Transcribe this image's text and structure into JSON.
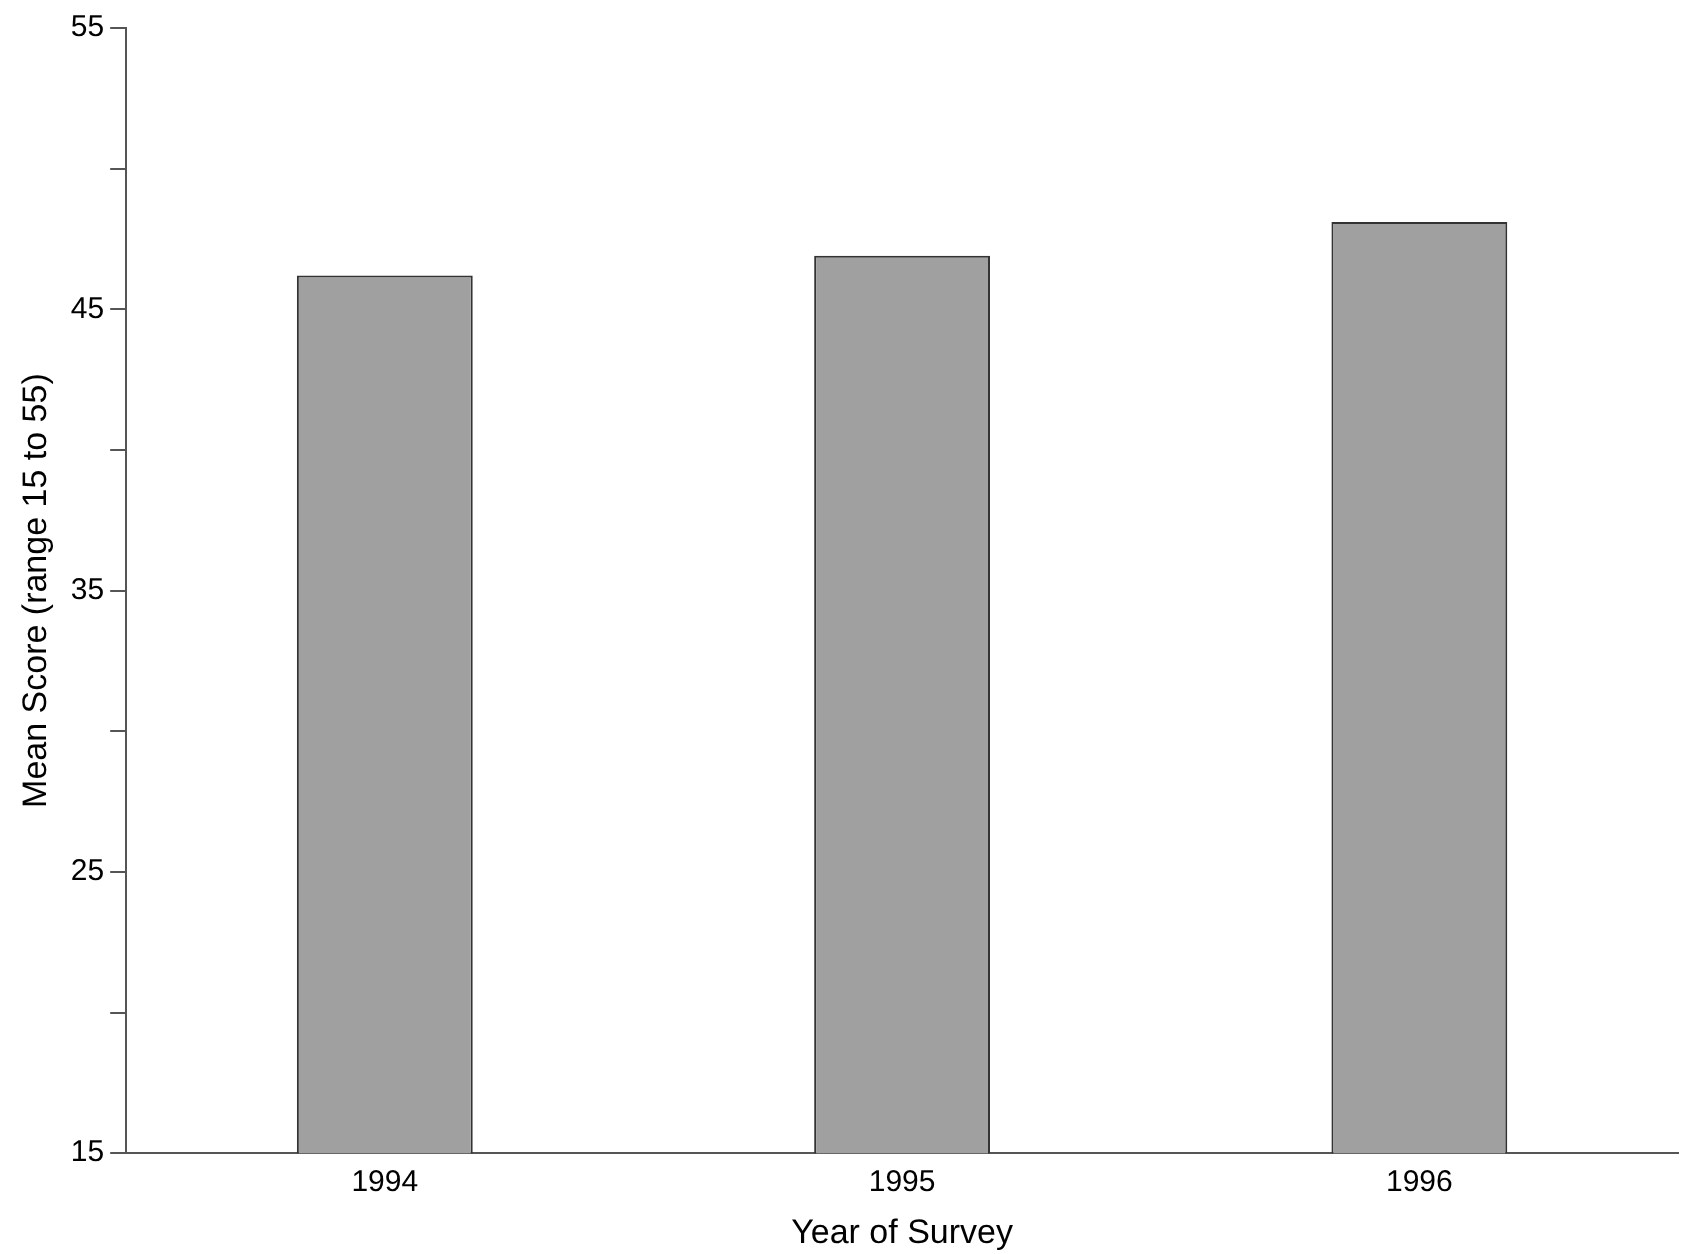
{
  "chart_data": {
    "type": "bar",
    "xlabel": "Year of Survey",
    "ylabel": "Mean Score (range 15 to 55)",
    "categories": [
      "1994",
      "1995",
      "1996"
    ],
    "values": [
      46.2,
      46.9,
      48.1
    ],
    "color": "#a0a0a0",
    "ylim": [
      15,
      55
    ],
    "yticks": [
      15,
      {
        "value": 20,
        "label": null
      },
      25,
      {
        "value": 30,
        "label": null
      },
      35,
      {
        "value": 40,
        "label": null
      },
      45,
      {
        "value": 50,
        "label": null
      },
      55
    ],
    "grid": false,
    "legend": false
  }
}
